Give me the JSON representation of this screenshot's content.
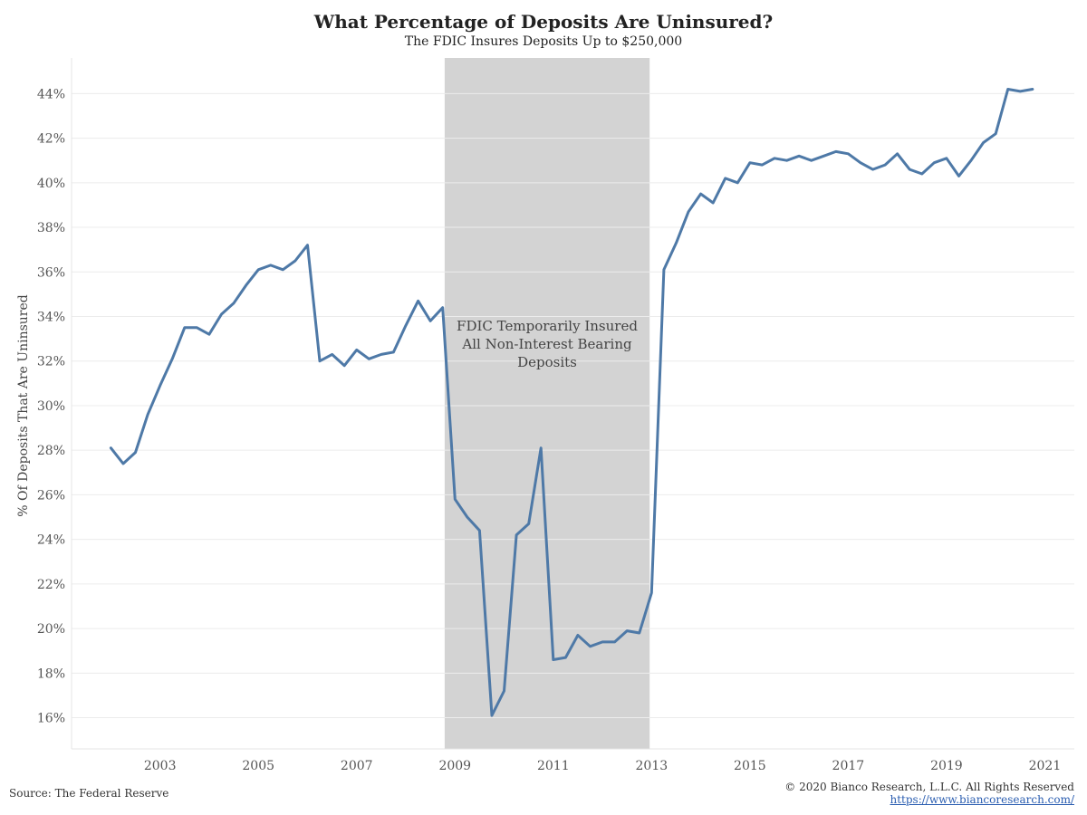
{
  "colors": {
    "line": "#4e79a7",
    "shade": "#d3d3d3",
    "grid": "#ececec",
    "text": "#333333",
    "link": "#2a5db0"
  },
  "footer": {
    "source": "Source: The Federal Reserve",
    "copyright": "© 2020 Bianco Research, L.L.C. All Rights Reserved",
    "url": "https://www.biancoresearch.com/"
  },
  "chart_data": {
    "type": "line",
    "title": "What Percentage of Deposits Are Uninsured?",
    "subtitle": "The FDIC Insures Deposits Up to $250,000",
    "ylabel": "% Of Deposits That Are Uninsured",
    "xlabel": "",
    "xlim": [
      2001.2,
      2021.6
    ],
    "ylim": [
      14.6,
      45.6
    ],
    "grid": true,
    "x_ticks": [
      {
        "value": 2003,
        "label": "2003"
      },
      {
        "value": 2005,
        "label": "2005"
      },
      {
        "value": 2007,
        "label": "2007"
      },
      {
        "value": 2009,
        "label": "2009"
      },
      {
        "value": 2011,
        "label": "2011"
      },
      {
        "value": 2013,
        "label": "2013"
      },
      {
        "value": 2015,
        "label": "2015"
      },
      {
        "value": 2017,
        "label": "2017"
      },
      {
        "value": 2019,
        "label": "2019"
      },
      {
        "value": 2021,
        "label": "2021"
      }
    ],
    "y_ticks": [
      {
        "value": 16,
        "label": "16%"
      },
      {
        "value": 18,
        "label": "18%"
      },
      {
        "value": 20,
        "label": "20%"
      },
      {
        "value": 22,
        "label": "22%"
      },
      {
        "value": 24,
        "label": "24%"
      },
      {
        "value": 26,
        "label": "26%"
      },
      {
        "value": 28,
        "label": "28%"
      },
      {
        "value": 30,
        "label": "30%"
      },
      {
        "value": 32,
        "label": "32%"
      },
      {
        "value": 34,
        "label": "34%"
      },
      {
        "value": 36,
        "label": "36%"
      },
      {
        "value": 38,
        "label": "38%"
      },
      {
        "value": 40,
        "label": "40%"
      },
      {
        "value": 42,
        "label": "42%"
      },
      {
        "value": 44,
        "label": "44%"
      }
    ],
    "shaded_region": {
      "x_start": 2008.79,
      "x_end": 2012.96,
      "text_lines": [
        "FDIC Temporarily Insured",
        "All Non-Interest Bearing",
        "Deposits"
      ]
    },
    "series": [
      {
        "x": [
          2002.0,
          2002.25,
          2002.5,
          2002.75,
          2003.0,
          2003.25,
          2003.5,
          2003.75,
          2004.0,
          2004.25,
          2004.5,
          2004.75,
          2005.0,
          2005.25,
          2005.5,
          2005.75,
          2006.0,
          2006.25,
          2006.5,
          2006.75,
          2007.0,
          2007.25,
          2007.5,
          2007.75,
          2008.0,
          2008.25,
          2008.5,
          2008.75,
          2009.0,
          2009.25,
          2009.5,
          2009.75,
          2010.0,
          2010.25,
          2010.5,
          2010.75,
          2011.0,
          2011.25,
          2011.5,
          2011.75,
          2012.0,
          2012.25,
          2012.5,
          2012.75,
          2013.0,
          2013.25,
          2013.5,
          2013.75,
          2014.0,
          2014.25,
          2014.5,
          2014.75,
          2015.0,
          2015.25,
          2015.5,
          2015.75,
          2016.0,
          2016.25,
          2016.5,
          2016.75,
          2017.0,
          2017.25,
          2017.5,
          2017.75,
          2018.0,
          2018.25,
          2018.5,
          2018.75,
          2019.0,
          2019.25,
          2019.5,
          2019.75,
          2020.0,
          2020.25,
          2020.5,
          2020.75
        ],
        "values": [
          28.1,
          27.4,
          27.9,
          29.6,
          30.9,
          32.1,
          33.5,
          33.5,
          33.2,
          34.1,
          34.6,
          35.4,
          36.1,
          36.3,
          36.1,
          36.5,
          37.2,
          32.0,
          32.3,
          31.8,
          32.5,
          32.1,
          32.3,
          32.4,
          33.6,
          34.7,
          33.8,
          34.4,
          25.8,
          25.0,
          24.4,
          16.1,
          17.2,
          24.2,
          24.7,
          28.1,
          18.6,
          18.7,
          19.7,
          19.2,
          19.4,
          19.4,
          19.9,
          19.8,
          21.6,
          36.1,
          37.3,
          38.7,
          39.5,
          39.1,
          40.2,
          40.0,
          40.9,
          40.8,
          41.1,
          41.0,
          41.2,
          41.0,
          41.2,
          41.4,
          41.3,
          40.9,
          40.6,
          40.8,
          41.3,
          40.6,
          40.4,
          40.9,
          41.1,
          40.3,
          41.0,
          41.8,
          42.2,
          44.2,
          44.1,
          44.2
        ]
      }
    ]
  }
}
